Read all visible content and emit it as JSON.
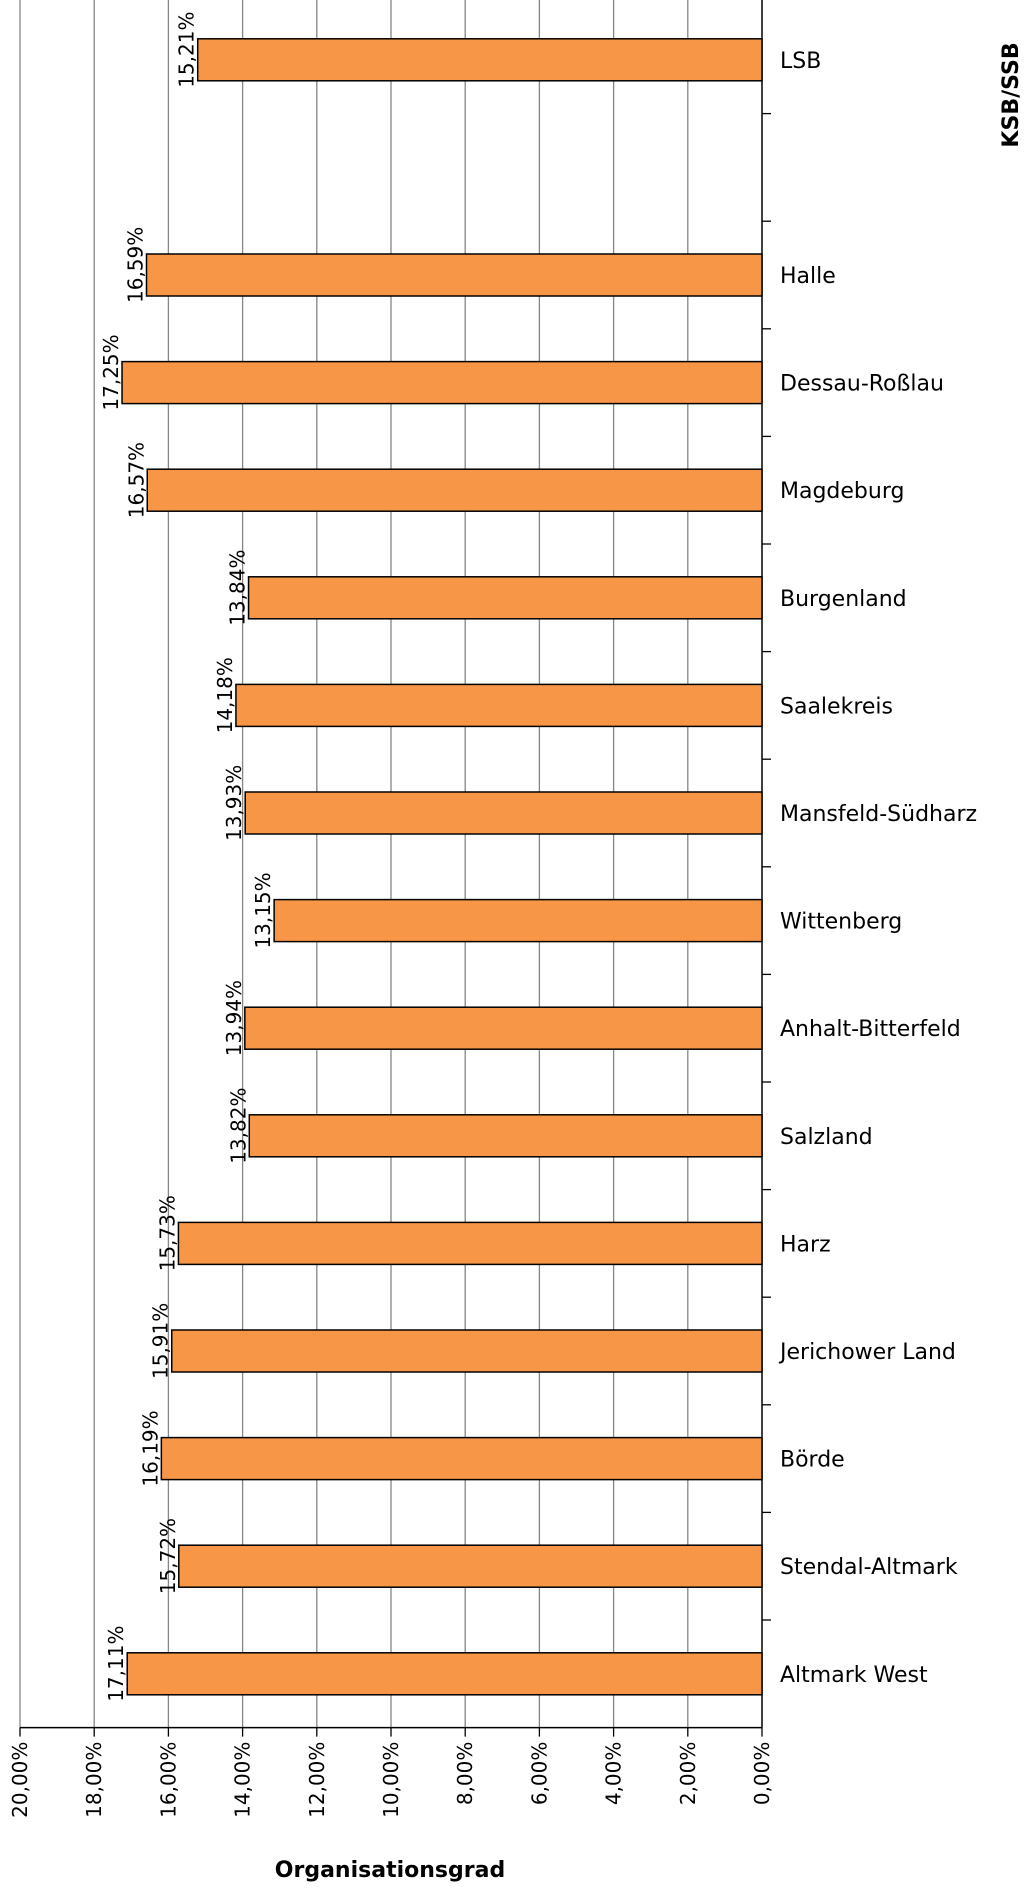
{
  "chart_data": {
    "type": "bar",
    "orientation": "horizontal",
    "x_direction": "reversed",
    "categories": [
      "LSB",
      "",
      "Halle",
      "Dessau-Roßlau",
      "Magdeburg",
      "Burgenland",
      "Saalekreis",
      "Mansfeld-Südharz",
      "Wittenberg",
      "Anhalt-Bitterfeld",
      "Salzland",
      "Harz",
      "Jerichower Land",
      "Börde",
      "Stendal-Altmark",
      "Altmark West"
    ],
    "values": [
      15.21,
      null,
      16.59,
      17.25,
      16.57,
      13.84,
      14.18,
      13.93,
      13.15,
      13.94,
      13.82,
      15.73,
      15.91,
      16.19,
      15.72,
      17.11
    ],
    "value_labels": [
      "15,21%",
      "",
      "16,59%",
      "17,25%",
      "16,57%",
      "13,84%",
      "14,18%",
      "13,93%",
      "13,15%",
      "13,94%",
      "13,82%",
      "15,73%",
      "15,91%",
      "16,19%",
      "15,72%",
      "17,11%"
    ],
    "xlim": [
      0,
      20
    ],
    "ticks": [
      20,
      18,
      16,
      14,
      12,
      10,
      8,
      6,
      4,
      2,
      0
    ],
    "tick_labels": [
      "20,00%",
      "18,00%",
      "16,00%",
      "14,00%",
      "12,00%",
      "10,00%",
      "8,00%",
      "6,00%",
      "4,00%",
      "2,00%",
      "0,00%"
    ],
    "xlabel": "Organisationsgrad",
    "ylabel": "KSB/SSB",
    "grid": true,
    "bar_color": "#f79646",
    "bar_border_color": "#000000",
    "grid_color": "#868686"
  }
}
